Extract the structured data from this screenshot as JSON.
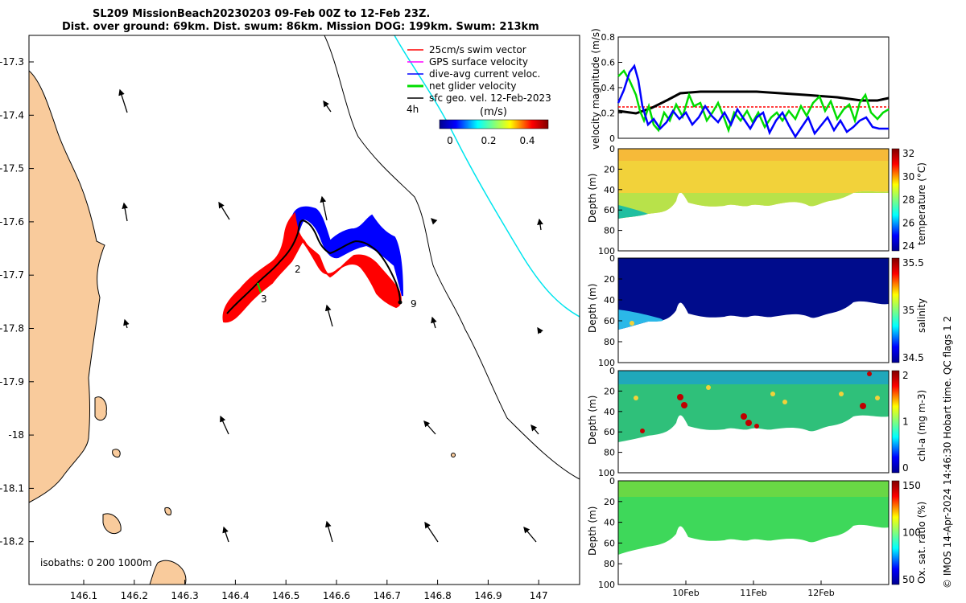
{
  "title": {
    "line1": "SL209 MissionBeach20230203 09-Feb 00Z to 12-Feb 23Z.",
    "line2": "Dist. over ground: 69km. Dist. swum: 86km. Mission DOG: 199km. Swum: 213km"
  },
  "map": {
    "x_ticks": [
      "146.1",
      "146.2",
      "146.3",
      "146.4",
      "146.5",
      "146.6",
      "146.7",
      "146.8",
      "146.9",
      "147"
    ],
    "y_ticks": [
      "-17.3",
      "-17.4",
      "-17.5",
      "-17.6",
      "-17.7",
      "-17.8",
      "-17.9",
      "-18",
      "-18.1",
      "-18.2"
    ],
    "legend": [
      {
        "label": "25cm/s swim vector",
        "color": "#ff0000"
      },
      {
        "label": "GPS surface velocity",
        "color": "#ff00ff"
      },
      {
        "label": "dive-avg current veloc.",
        "color": "#0000ff"
      },
      {
        "label": "net glider velocity",
        "color": "#00dd00"
      },
      {
        "label": "sfc geo. vel. 12-Feb-2023",
        "color": "#000000"
      }
    ],
    "time_marker": "4h",
    "colorbar_unit": "(m/s)",
    "colorbar_ticks": [
      "0",
      "0.2",
      "0.4"
    ],
    "track_labels": [
      "2",
      "3",
      "9"
    ],
    "isobaths": "isobaths: 0   200   1000m",
    "colors": {
      "land": "#f9cb9c",
      "track": "#000000",
      "swim": "#ff0000",
      "current": "#0000ff",
      "shelf": "#00e5ee"
    }
  },
  "chart_data": [
    {
      "type": "line",
      "title": "",
      "ylabel": "velocity magnitude (m/s)",
      "ylim": [
        0,
        0.8
      ],
      "y_ticks": [
        "0",
        "0.2",
        "0.4",
        "0.6",
        "0.8"
      ],
      "series": [
        {
          "name": "net glider velocity",
          "color": "#00dd00"
        },
        {
          "name": "dive-avg current veloc.",
          "color": "#0000ff"
        },
        {
          "name": "sfc geo. vel.",
          "color": "#000000"
        },
        {
          "name": "25cm/s swim vector",
          "color": "#ff0000",
          "value": 0.25
        }
      ]
    },
    {
      "type": "heatmap",
      "ylabel": "Depth (m)",
      "y_ticks": [
        "0",
        "20",
        "40",
        "60",
        "80",
        "100"
      ],
      "cbar_label": "temperature (°C)",
      "cbar_ticks": [
        "32",
        "30",
        "28",
        "26",
        "24"
      ]
    },
    {
      "type": "heatmap",
      "ylabel": "Depth (m)",
      "y_ticks": [
        "0",
        "20",
        "40",
        "60",
        "80",
        "100"
      ],
      "cbar_label": "salinity",
      "cbar_ticks": [
        "35.5",
        "35",
        "34.5"
      ]
    },
    {
      "type": "heatmap",
      "ylabel": "Depth (m)",
      "y_ticks": [
        "0",
        "20",
        "40",
        "60",
        "80",
        "100"
      ],
      "cbar_label": "chl-a (mg m-3)",
      "cbar_ticks": [
        "2",
        "1",
        "0"
      ]
    },
    {
      "type": "heatmap",
      "ylabel": "Depth (m)",
      "y_ticks": [
        "0",
        "20",
        "40",
        "60",
        "80",
        "100"
      ],
      "cbar_label": "Ox. sat. ratio (%)",
      "cbar_ticks": [
        "150",
        "100",
        "50"
      ],
      "x_ticks": [
        "10Feb",
        "11Feb",
        "12Feb"
      ]
    }
  ],
  "credit": "© IMOS 14-Apr-2024 14:46:30 Hobart time. QC flags 1  2"
}
